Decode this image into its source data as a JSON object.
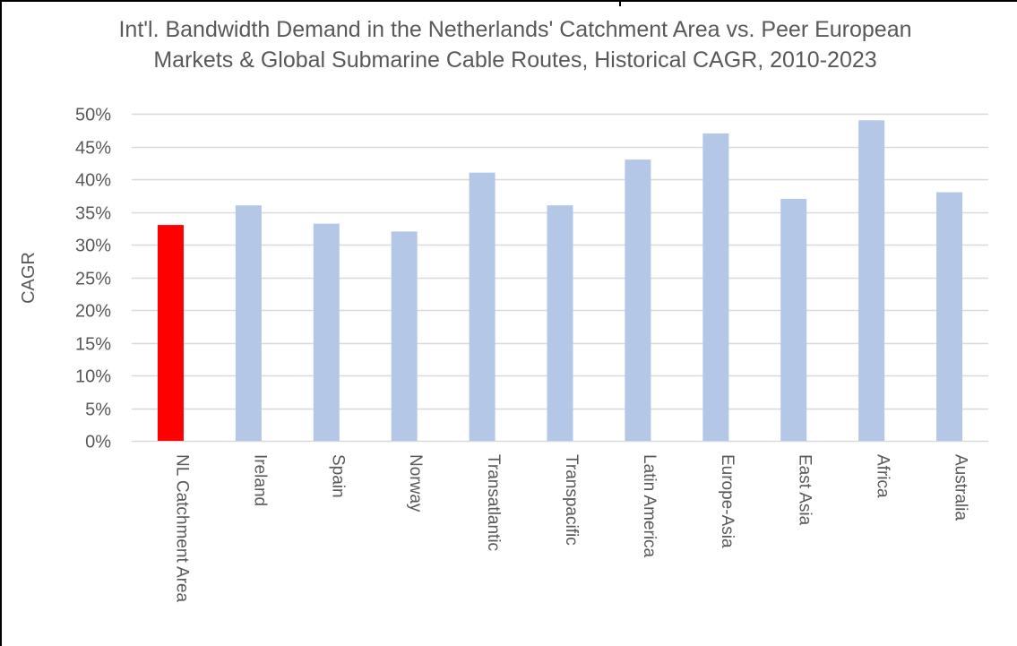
{
  "chart_data": {
    "type": "bar",
    "title": "Int'l. Bandwidth Demand in the Netherlands' Catchment Area vs. Peer European Markets & Global Submarine Cable Routes, Historical CAGR, 2010-2023",
    "xlabel": "",
    "ylabel": "CAGR",
    "ylim": [
      0,
      50
    ],
    "yticks": [
      "0%",
      "5%",
      "10%",
      "15%",
      "20%",
      "25%",
      "30%",
      "35%",
      "40%",
      "45%",
      "50%"
    ],
    "grid": true,
    "categories": [
      "NL Catchment Area",
      "Ireland",
      "Spain",
      "Norway",
      "Transatlantic",
      "Transpacific",
      "Latin America",
      "Europe-Asia",
      "East Asia",
      "Africa",
      "Australia"
    ],
    "values": [
      33,
      36,
      33.2,
      32,
      41,
      36,
      43,
      47,
      37,
      49,
      38
    ],
    "unit": "%",
    "colors": {
      "highlight": "#ff0000",
      "default": "#b4c7e7",
      "grid": "#d9d9d9",
      "text": "#595959"
    }
  }
}
